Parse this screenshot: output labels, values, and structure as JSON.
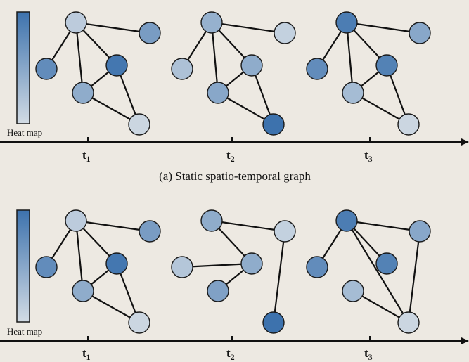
{
  "colors": {
    "background": "#ede9e2",
    "heat_high": "#3d72ad",
    "heat_low": "#d2dbe4",
    "edge": "#111111"
  },
  "panels": [
    {
      "caption": "(a) Static spatio-temporal graph",
      "heat_label": "Heat map",
      "time_labels": [
        {
          "base": "t",
          "sub": "1"
        },
        {
          "base": "t",
          "sub": "2"
        },
        {
          "base": "t",
          "sub": "3"
        }
      ],
      "graphs": [
        {
          "heat": [
            0.15,
            0.6,
            0.75,
            0.95,
            0.45,
            0.05
          ],
          "edges": [
            [
              0,
              1
            ],
            [
              0,
              2
            ],
            [
              0,
              3
            ],
            [
              0,
              4
            ],
            [
              3,
              4
            ],
            [
              3,
              5
            ],
            [
              4,
              5
            ]
          ]
        },
        {
          "heat": [
            0.4,
            0.1,
            0.25,
            0.45,
            0.5,
            1.0
          ],
          "edges": [
            [
              0,
              1
            ],
            [
              0,
              2
            ],
            [
              0,
              3
            ],
            [
              0,
              4
            ],
            [
              3,
              4
            ],
            [
              3,
              5
            ],
            [
              4,
              5
            ]
          ]
        },
        {
          "heat": [
            0.9,
            0.5,
            0.75,
            0.85,
            0.3,
            0.05
          ],
          "edges": [
            [
              0,
              1
            ],
            [
              0,
              2
            ],
            [
              0,
              3
            ],
            [
              0,
              4
            ],
            [
              3,
              4
            ],
            [
              3,
              5
            ],
            [
              4,
              5
            ]
          ]
        }
      ]
    },
    {
      "caption": "",
      "heat_label": "Heat map",
      "time_labels": [
        {
          "base": "t",
          "sub": "1"
        },
        {
          "base": "t",
          "sub": "2"
        },
        {
          "base": "t",
          "sub": "3"
        }
      ],
      "graphs": [
        {
          "heat": [
            0.15,
            0.6,
            0.75,
            0.95,
            0.45,
            0.05
          ],
          "edges": [
            [
              0,
              1
            ],
            [
              0,
              2
            ],
            [
              0,
              3
            ],
            [
              0,
              4
            ],
            [
              3,
              4
            ],
            [
              3,
              5
            ],
            [
              4,
              5
            ]
          ]
        },
        {
          "heat": [
            0.45,
            0.1,
            0.2,
            0.45,
            0.55,
            1.0
          ],
          "edges": [
            [
              0,
              1
            ],
            [
              0,
              3
            ],
            [
              2,
              3
            ],
            [
              3,
              4
            ],
            [
              1,
              5
            ]
          ]
        },
        {
          "heat": [
            0.9,
            0.5,
            0.75,
            0.85,
            0.3,
            0.05
          ],
          "edges": [
            [
              0,
              1
            ],
            [
              0,
              2
            ],
            [
              0,
              3
            ],
            [
              0,
              5
            ],
            [
              1,
              5
            ],
            [
              4,
              5
            ]
          ]
        }
      ]
    }
  ]
}
